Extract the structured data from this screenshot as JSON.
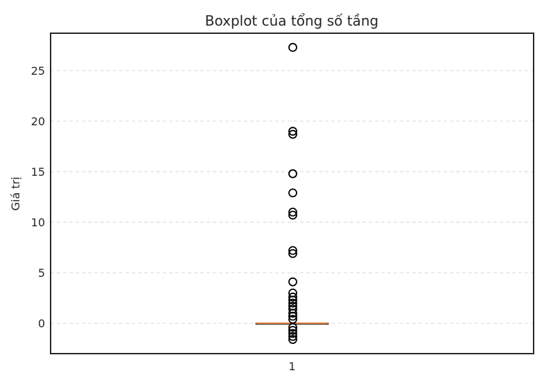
{
  "chart_data": {
    "type": "boxplot",
    "title": "Boxplot của tổng số tầng",
    "ylabel": "Giá trị",
    "xlabel": "",
    "ylim": [
      -3,
      28.7
    ],
    "yticks": [
      0,
      5,
      10,
      15,
      20,
      25
    ],
    "categories": [
      "1"
    ],
    "grid": "y-dashed",
    "box": {
      "q1": 0,
      "median": 0,
      "q3": 0,
      "whisker_low": 0,
      "whisker_high": 0
    },
    "outliers": [
      27.3,
      19.0,
      18.7,
      14.8,
      14.8,
      12.9,
      11.0,
      10.7,
      7.2,
      6.9,
      4.1,
      3.0,
      2.6,
      2.3,
      2.0,
      1.7,
      1.4,
      1.0,
      0.7,
      0.4,
      -0.4,
      -0.7,
      -1.0,
      -1.3,
      -1.6
    ],
    "colors": {
      "median": "#e8823a",
      "outlier": "#000000",
      "grid": "#dddddd",
      "frame": "#262626"
    }
  }
}
